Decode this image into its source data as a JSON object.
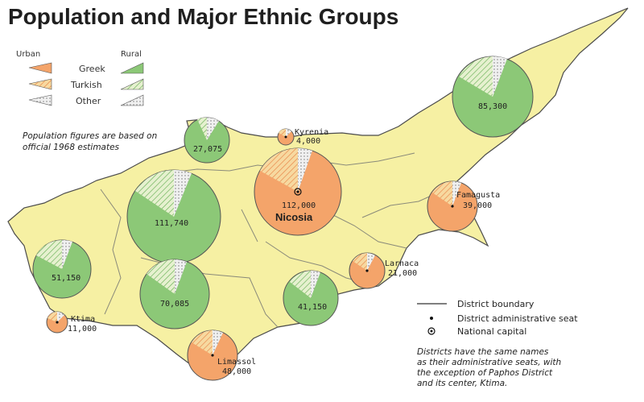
{
  "title": "Population and Major Ethnic Groups",
  "legend": {
    "urban_heading": "Urban",
    "rural_heading": "Rural",
    "items": [
      {
        "label": "Greek",
        "color": "#f4a46a",
        "rural_color": "#8cc877"
      },
      {
        "label": "Turkish",
        "color": "#f7d27a",
        "rural_color": "#c9e3a4"
      },
      {
        "label": "Other",
        "color": "#dcdcdc",
        "rural_color": "#dcdcdc"
      }
    ]
  },
  "note_lines": [
    "Population figures are based on",
    "official 1968 estimates"
  ],
  "districts": [
    {
      "id": "kyrenia-district",
      "population": "27,075"
    },
    {
      "id": "nicosia-district",
      "population": "111,740"
    },
    {
      "id": "paphos-district",
      "population": "51,150"
    },
    {
      "id": "limassol-district",
      "population": "70,085"
    },
    {
      "id": "larnaca-district",
      "population": "41,150"
    },
    {
      "id": "famagusta-district",
      "population": "85,300"
    }
  ],
  "cities": [
    {
      "name": "Kyrenia",
      "population": "4,000"
    },
    {
      "name": "",
      "population": "112,000"
    },
    {
      "name": "Famagusta",
      "population": "39,000"
    },
    {
      "name": "Larnaca",
      "population": "21,000"
    },
    {
      "name": "Ktima",
      "population": "11,000"
    },
    {
      "name": "Limassol",
      "population": "48,000"
    }
  ],
  "capital": "Nicosia",
  "key": {
    "district_boundary": "District boundary",
    "admin_seat": "District administrative seat",
    "national_capital": "National capital"
  },
  "footnote_lines": [
    "Districts have the same names",
    "as their administrative seats, with",
    "the exception of Paphos District",
    "and its center, Ktima."
  ]
}
